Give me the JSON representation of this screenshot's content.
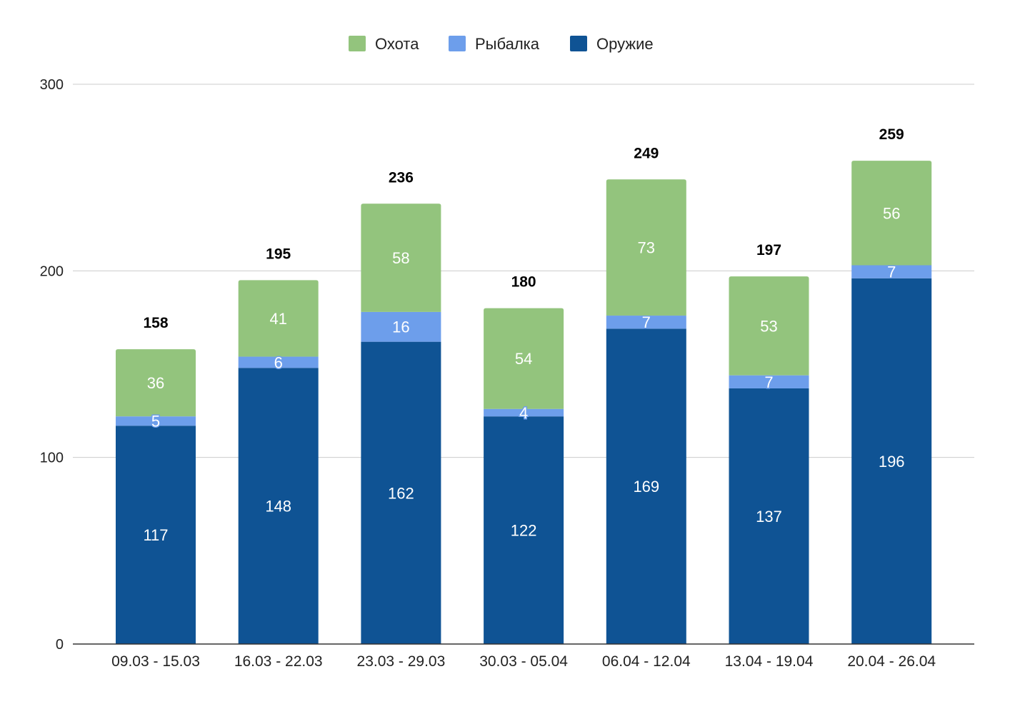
{
  "chart_data": {
    "type": "bar",
    "stacked": true,
    "title": "",
    "xlabel": "",
    "ylabel": "",
    "categories": [
      "09.03 - 15.03",
      "16.03 - 22.03",
      "23.03 - 29.03",
      "30.03 - 05.04",
      "06.04 - 12.04",
      "13.04 - 19.04",
      "20.04 - 26.04"
    ],
    "series": [
      {
        "name": "Оружие",
        "color": "#0f5394",
        "values": [
          117,
          148,
          162,
          122,
          169,
          137,
          196
        ]
      },
      {
        "name": "Рыбалка",
        "color": "#6d9eeb",
        "values": [
          5,
          6,
          16,
          4,
          7,
          7,
          7
        ]
      },
      {
        "name": "Охота",
        "color": "#93c47d",
        "values": [
          36,
          41,
          58,
          54,
          73,
          53,
          56
        ]
      }
    ],
    "totals": [
      158,
      195,
      236,
      180,
      249,
      197,
      259
    ],
    "legend_order": [
      "Охота",
      "Рыбалка",
      "Оружие"
    ],
    "legend_position": "top-center",
    "ylim": [
      0,
      300
    ],
    "yticks": [
      0,
      100,
      200,
      300
    ],
    "grid": true,
    "gridline_color": "#cccccc",
    "axis_color": "#333333",
    "label_color_inside": "#ffffff",
    "total_label_color": "#000000"
  }
}
